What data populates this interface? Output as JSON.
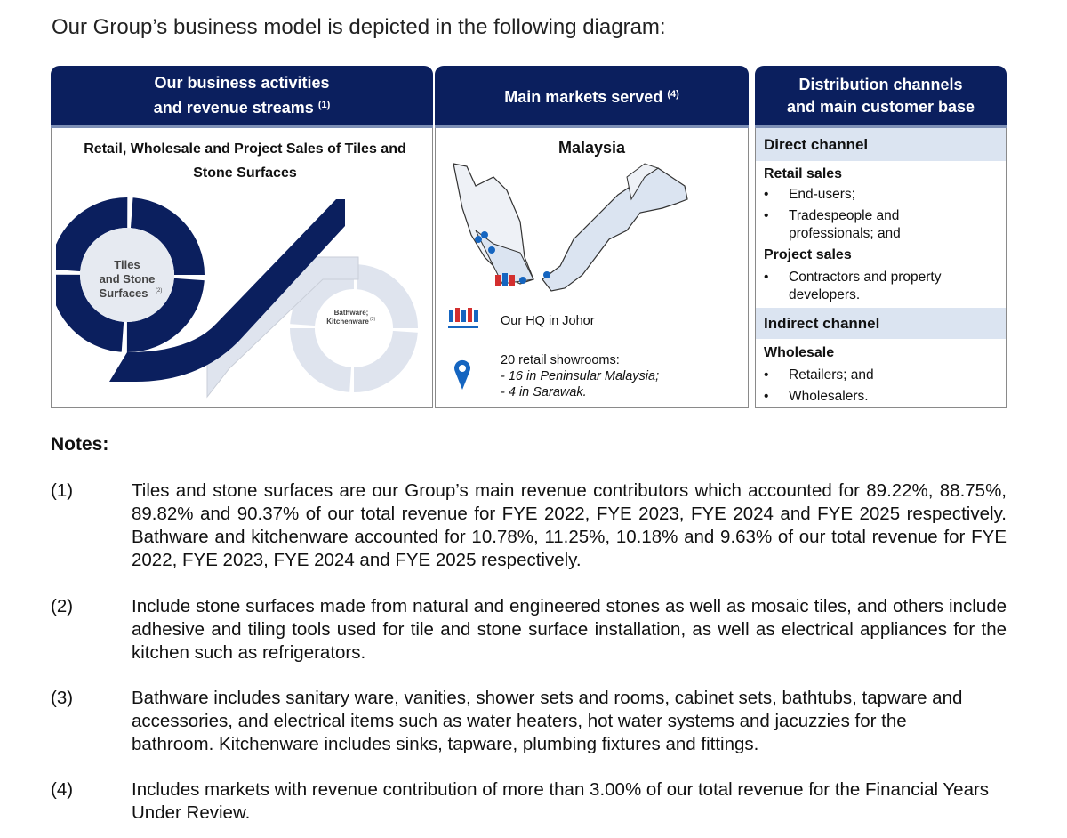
{
  "intro": "Our Group’s business model is depicted in the following diagram:",
  "colors": {
    "header_navy": "#0b1f5e",
    "section_bar": "#dbe4f1",
    "pin_blue": "#1565c0"
  },
  "panel1": {
    "title_line1": "Our business activities",
    "title_line2": "and revenue streams",
    "title_note": "(1)",
    "subtitle": "Retail, Wholesale and Project Sales of Tiles and Stone Surfaces",
    "ring1_line1": "Tiles",
    "ring1_line2": "and Stone",
    "ring1_line3": "Surfaces",
    "ring1_note": "(2)",
    "ring2_line1": "Bathware;",
    "ring2_line2": "Kitchenware",
    "ring2_note": "(3)"
  },
  "panel2": {
    "title": "Main markets served",
    "title_note": "(4)",
    "country": "Malaysia",
    "hq_label": "Our HQ in Johor",
    "showrooms_title": "20 retail showrooms:",
    "showrooms_items": [
      "-  16 in Peninsular Malaysia;",
      "-  4 in Sarawak."
    ]
  },
  "panel3": {
    "title_line1": "Distribution channels",
    "title_line2": "and main customer base",
    "direct": {
      "label": "Direct channel",
      "retail": {
        "label": "Retail sales",
        "items": [
          "End-users;",
          "Tradespeople and professionals; and"
        ]
      },
      "project": {
        "label": "Project sales",
        "items": [
          "Contractors and property developers."
        ]
      }
    },
    "indirect": {
      "label": "Indirect channel",
      "wholesale": {
        "label": "Wholesale",
        "items": [
          "Retailers; and",
          "Wholesalers."
        ]
      }
    }
  },
  "notes": {
    "title": "Notes:",
    "items": [
      {
        "num": "(1)",
        "text": "Tiles and stone surfaces are our Group’s main revenue contributors which accounted for 89.22%, 88.75%, 89.82% and 90.37% of our total revenue for FYE 2022, FYE 2023, FYE 2024 and FYE 2025 respectively. Bathware and kitchenware accounted for 10.78%, 11.25%, 10.18% and 9.63% of our total revenue for FYE 2022, FYE 2023, FYE 2024 and FYE 2025 respectively."
      },
      {
        "num": "(2)",
        "text": "Include stone surfaces made from natural and engineered stones as well as mosaic tiles, and others include adhesive and tiling tools used for tile and stone surface installation, as well as electrical appliances for the kitchen such as refrigerators."
      },
      {
        "num": "(3)",
        "text": "Bathware includes sanitary ware, vanities, shower sets and rooms, cabinet sets, bathtubs, tapware and accessories, and electrical items such as water heaters, hot water systems and jacuzzies for the bathroom. Kitchenware includes sinks, tapware, plumbing fixtures and fittings."
      },
      {
        "num": "(4)",
        "text": "Includes markets with revenue contribution of more than 3.00% of our total revenue for the Financial Years Under Review."
      }
    ]
  }
}
